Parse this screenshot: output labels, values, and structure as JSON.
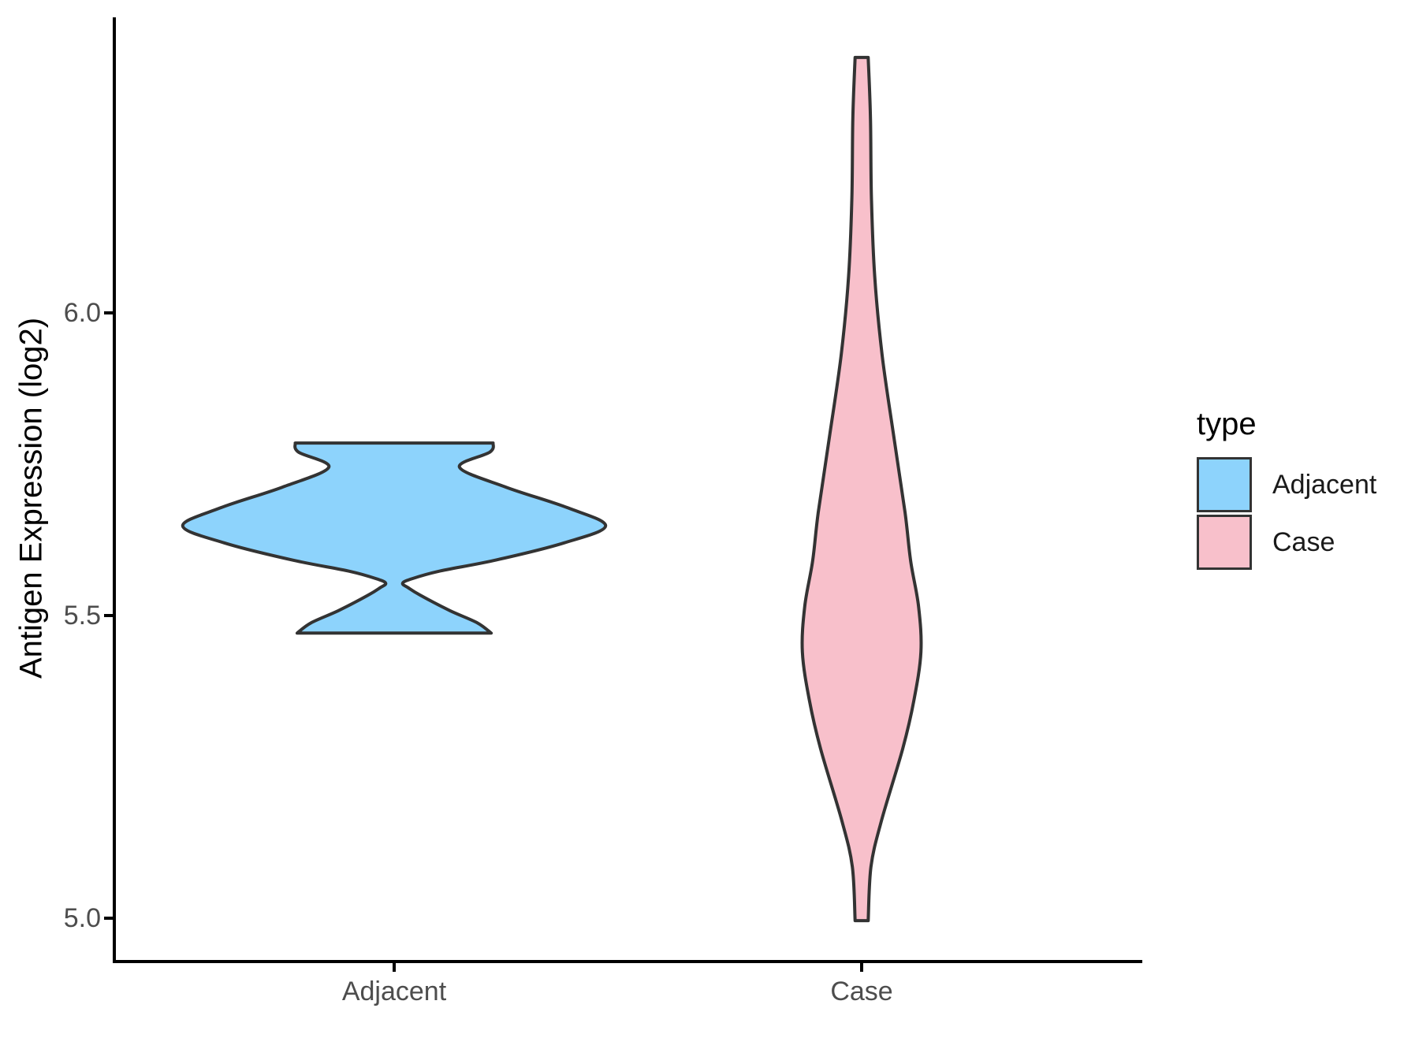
{
  "chart_data": {
    "type": "violin",
    "title": "",
    "xlabel": "",
    "ylabel": "Antigen Expression (log2)",
    "categories": [
      "Adjacent",
      "Case"
    ],
    "grid": false,
    "axis_color": "#000000",
    "outline_color": "#333333",
    "tick_label_color": "#4d4d4d",
    "y_axis": {
      "tick_labels": [
        "6.0",
        "5.5",
        "5.0"
      ],
      "tick_values": [
        6.0,
        5.5,
        5.0
      ],
      "range": [
        4.93,
        6.49
      ]
    },
    "legend": {
      "title": "type",
      "position": "right",
      "entries": [
        {
          "label": "Adjacent",
          "color": "#8dd3fc"
        },
        {
          "label": "Case",
          "color": "#f8c0cb"
        }
      ]
    },
    "series": [
      {
        "name": "Adjacent",
        "fill": "#8dd3fc",
        "data_range": [
          5.47,
          5.79
        ],
        "peak_value": 5.65,
        "max_half_width": 0.45,
        "profile": [
          [
            5.785,
            0.212
          ],
          [
            5.77,
            0.205
          ],
          [
            5.745,
            0.14
          ],
          [
            5.712,
            0.24
          ],
          [
            5.678,
            0.372
          ],
          [
            5.648,
            0.453
          ],
          [
            5.62,
            0.364
          ],
          [
            5.592,
            0.22
          ],
          [
            5.573,
            0.095
          ],
          [
            5.56,
            0.035
          ],
          [
            5.553,
            0.018
          ],
          [
            5.546,
            0.03
          ],
          [
            5.534,
            0.055
          ],
          [
            5.508,
            0.12
          ],
          [
            5.488,
            0.178
          ],
          [
            5.471,
            0.208
          ]
        ]
      },
      {
        "name": "Case",
        "fill": "#f8c0cb",
        "data_range": [
          5.0,
          6.42
        ],
        "peak_value": 5.44,
        "max_half_width": 0.13,
        "profile": [
          [
            6.422,
            0.014
          ],
          [
            6.32,
            0.019
          ],
          [
            6.19,
            0.021
          ],
          [
            6.06,
            0.028
          ],
          [
            5.93,
            0.044
          ],
          [
            5.8,
            0.068
          ],
          [
            5.67,
            0.093
          ],
          [
            5.59,
            0.105
          ],
          [
            5.515,
            0.122
          ],
          [
            5.44,
            0.127
          ],
          [
            5.36,
            0.112
          ],
          [
            5.28,
            0.088
          ],
          [
            5.16,
            0.042
          ],
          [
            5.085,
            0.02
          ],
          [
            4.996,
            0.014
          ]
        ]
      }
    ]
  }
}
